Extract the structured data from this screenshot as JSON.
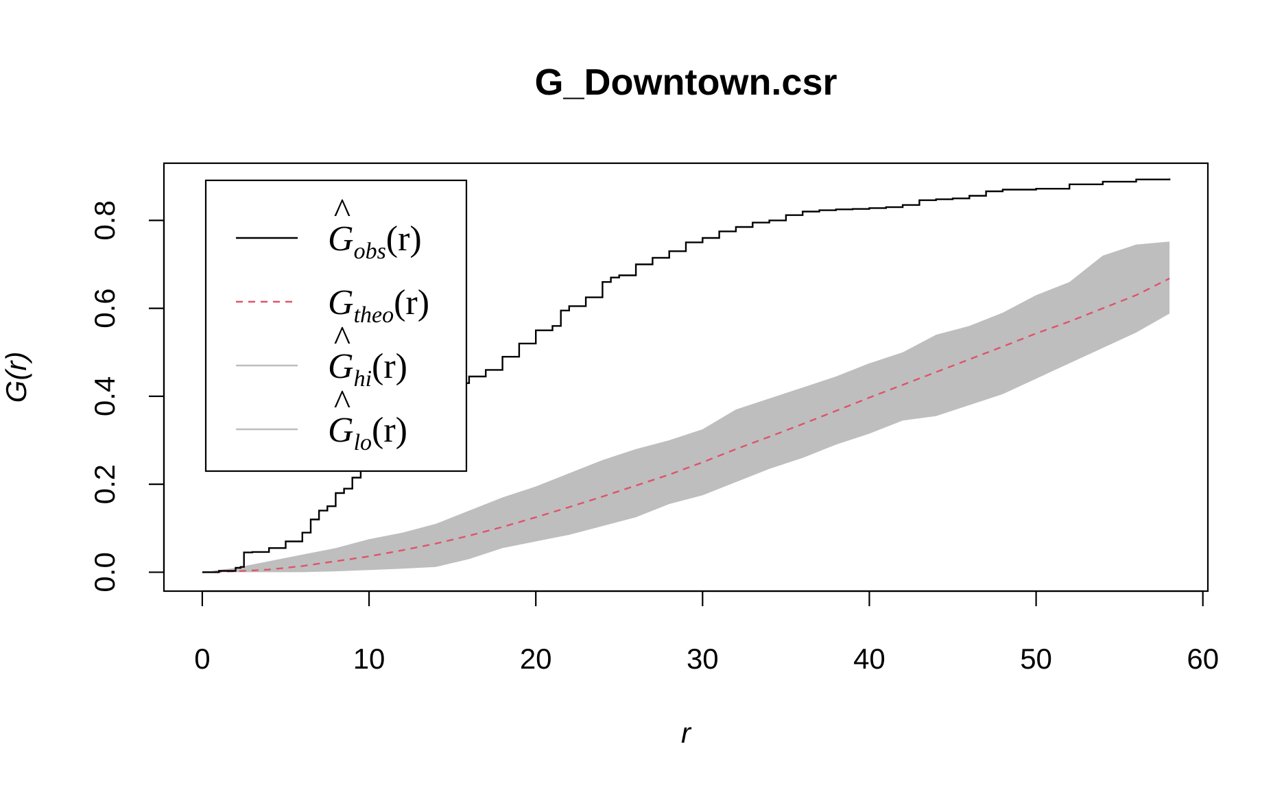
{
  "chart_data": {
    "type": "line",
    "title": "G_Downtown.csr",
    "xlabel": "r",
    "ylabel": "G(r)",
    "xlim": [
      -2.3,
      60.3
    ],
    "ylim": [
      -0.043,
      0.93
    ],
    "x_ticks": [
      0,
      10,
      20,
      30,
      40,
      50,
      60
    ],
    "y_ticks": [
      0.0,
      0.2,
      0.4,
      0.6,
      0.8
    ],
    "x_tick_labels": [
      "0",
      "10",
      "20",
      "30",
      "40",
      "50",
      "60"
    ],
    "y_tick_labels": [
      "0.0",
      "0.2",
      "0.4",
      "0.6",
      "0.8"
    ],
    "legend_position": "top-left",
    "legend": [
      {
        "base": "G",
        "hat": "^",
        "sub": "obs",
        "arg": "(r)",
        "color": "#000000",
        "dash": "solid"
      },
      {
        "base": "G",
        "hat": "",
        "sub": "theo",
        "arg": "(r)",
        "color": "#DF536B",
        "dash": "dashed"
      },
      {
        "base": "G",
        "hat": "^",
        "sub": "hi",
        "arg": "(r)",
        "color": "#BEBEBE",
        "dash": "solid"
      },
      {
        "base": "G",
        "hat": "^",
        "sub": "lo",
        "arg": "(r)",
        "color": "#BEBEBE",
        "dash": "solid"
      }
    ],
    "series": [
      {
        "name": "obs",
        "color": "#000000",
        "style": "step",
        "x": [
          0,
          1,
          2,
          2.3,
          2.5,
          3,
          4,
          5,
          6,
          6.5,
          7,
          7.5,
          8,
          8.5,
          9,
          9.5,
          10,
          11,
          12,
          13,
          14,
          15,
          16,
          17,
          18,
          19,
          20,
          21,
          21.5,
          22,
          23,
          24,
          24.5,
          25,
          26,
          27,
          28,
          29,
          30,
          31,
          32,
          33,
          34,
          35,
          36,
          37,
          38,
          39,
          40,
          41,
          42,
          43,
          44,
          45,
          46,
          47,
          48,
          50,
          52,
          54,
          56,
          58
        ],
        "y": [
          0.0,
          0.003,
          0.01,
          0.012,
          0.045,
          0.046,
          0.055,
          0.07,
          0.09,
          0.12,
          0.14,
          0.15,
          0.18,
          0.19,
          0.215,
          0.235,
          0.26,
          0.32,
          0.37,
          0.395,
          0.41,
          0.43,
          0.445,
          0.46,
          0.49,
          0.52,
          0.55,
          0.56,
          0.595,
          0.605,
          0.625,
          0.66,
          0.67,
          0.675,
          0.7,
          0.715,
          0.73,
          0.75,
          0.76,
          0.775,
          0.785,
          0.795,
          0.8,
          0.812,
          0.82,
          0.823,
          0.825,
          0.826,
          0.828,
          0.83,
          0.835,
          0.846,
          0.848,
          0.85,
          0.856,
          0.866,
          0.87,
          0.872,
          0.882,
          0.888,
          0.893,
          0.895
        ]
      },
      {
        "name": "theo",
        "color": "#DF536B",
        "style": "dashed",
        "x": [
          0,
          2,
          4,
          6,
          8,
          10,
          12,
          14,
          16,
          18,
          20,
          22,
          24,
          26,
          28,
          30,
          32,
          34,
          36,
          38,
          40,
          42,
          44,
          46,
          48,
          50,
          52,
          54,
          56,
          58
        ],
        "y": [
          0.0,
          0.002,
          0.006,
          0.014,
          0.025,
          0.036,
          0.05,
          0.065,
          0.083,
          0.103,
          0.125,
          0.148,
          0.172,
          0.197,
          0.222,
          0.25,
          0.28,
          0.308,
          0.337,
          0.367,
          0.397,
          0.426,
          0.455,
          0.484,
          0.513,
          0.543,
          0.57,
          0.6,
          0.63,
          0.668
        ]
      },
      {
        "name": "hi",
        "color": "#BEBEBE",
        "x": [
          0,
          2,
          4,
          6,
          8,
          10,
          12,
          14,
          16,
          18,
          20,
          22,
          24,
          26,
          28,
          30,
          32,
          34,
          36,
          38,
          40,
          42,
          44,
          46,
          48,
          50,
          52,
          54,
          56,
          58
        ],
        "y": [
          0.0,
          0.01,
          0.025,
          0.04,
          0.055,
          0.075,
          0.09,
          0.11,
          0.14,
          0.17,
          0.195,
          0.225,
          0.255,
          0.28,
          0.3,
          0.325,
          0.37,
          0.395,
          0.42,
          0.445,
          0.475,
          0.5,
          0.54,
          0.56,
          0.59,
          0.63,
          0.66,
          0.72,
          0.745,
          0.752
        ]
      },
      {
        "name": "lo",
        "color": "#BEBEBE",
        "x": [
          0,
          2,
          4,
          6,
          8,
          10,
          12,
          14,
          16,
          18,
          20,
          22,
          24,
          26,
          28,
          30,
          32,
          34,
          36,
          38,
          40,
          42,
          44,
          46,
          48,
          50,
          52,
          54,
          56,
          58
        ],
        "y": [
          0.0,
          0.0,
          0.0,
          0.0,
          0.002,
          0.005,
          0.008,
          0.012,
          0.03,
          0.055,
          0.07,
          0.085,
          0.105,
          0.125,
          0.155,
          0.175,
          0.205,
          0.235,
          0.26,
          0.29,
          0.315,
          0.345,
          0.355,
          0.38,
          0.405,
          0.44,
          0.475,
          0.51,
          0.545,
          0.588
        ]
      }
    ]
  }
}
